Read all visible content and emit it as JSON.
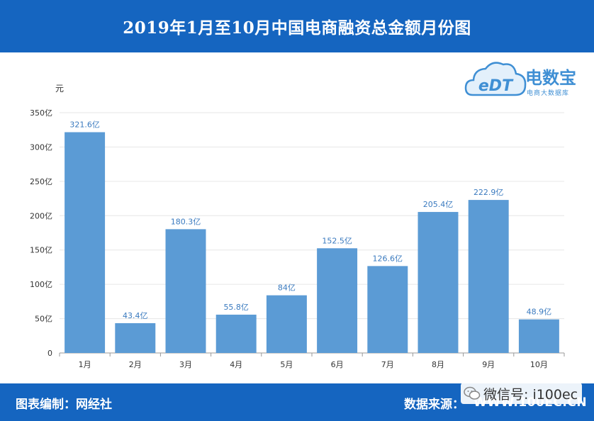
{
  "header": {
    "title": "2019年1月至10月中国电商融资总金额月份图"
  },
  "logo": {
    "brand": "电数宝",
    "tagline": "电商大数据库",
    "mark": "eDT"
  },
  "footer": {
    "credit": "图表编制：网经社",
    "source_label": "数据来源：",
    "url": "WWW.100EC.CN"
  },
  "watermark": {
    "handle": "微信号: i100ec"
  },
  "colors": {
    "header_bg": "#1565c0",
    "bar": "#5b9bd5",
    "label": "#3a7abf",
    "grid": "#e6e6e6"
  },
  "chart_data": {
    "type": "bar",
    "title": "2019年1月至10月中国电商融资总金额月份图",
    "ylabel": "元",
    "xlabel": "",
    "categories": [
      "1月",
      "2月",
      "3月",
      "4月",
      "5月",
      "6月",
      "7月",
      "8月",
      "9月",
      "10月"
    ],
    "values": [
      321.6,
      43.4,
      180.3,
      55.8,
      84,
      152.5,
      126.6,
      205.4,
      222.9,
      48.9
    ],
    "data_labels": [
      "321.6亿",
      "43.4亿",
      "180.3亿",
      "55.8亿",
      "84亿",
      "152.5亿",
      "126.6亿",
      "205.4亿",
      "222.9亿",
      "48.9亿"
    ],
    "yticks": [
      0,
      50,
      100,
      150,
      200,
      250,
      300,
      350
    ],
    "ytick_labels": [
      "0",
      "50亿",
      "100亿",
      "150亿",
      "200亿",
      "250亿",
      "300亿",
      "350亿"
    ],
    "ylim": [
      0,
      350
    ],
    "grid": true,
    "legend": "none"
  }
}
